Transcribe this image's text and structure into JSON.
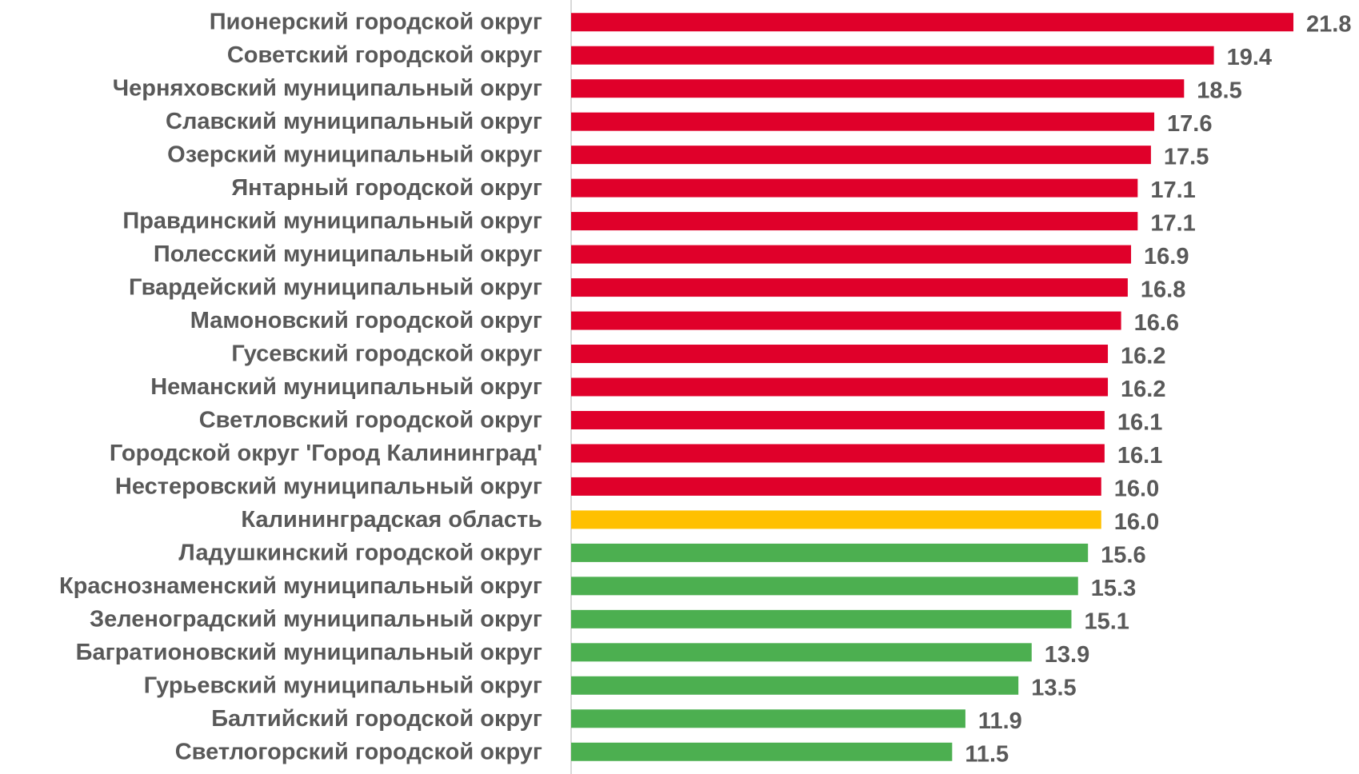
{
  "chart_data": {
    "type": "bar",
    "orientation": "horizontal",
    "title": "",
    "xlabel": "",
    "ylabel": "",
    "grid": false,
    "legend": "none",
    "xlim": [
      0,
      21.8
    ],
    "categories": [
      "Пионерский городской округ",
      "Советский городской округ",
      "Черняховский муниципальный округ",
      "Славский муниципальный округ",
      "Озерский муниципальный округ",
      "Янтарный городской округ",
      "Правдинский муниципальный округ",
      "Полесский муниципальный округ",
      "Гвардейский муниципальный округ",
      "Мамоновский городской округ",
      "Гусевский городской округ",
      "Неманский муниципальный округ",
      "Светловский городской округ",
      "Городской округ 'Город Калининград'",
      "Нестеровский муниципальный округ",
      "Калининградская область",
      "Ладушкинский городской округ",
      "Краснознаменский муниципальный округ",
      "Зеленоградский муниципальный округ",
      "Багратионовский муниципальный округ",
      "Гурьевский муниципальный округ",
      "Балтийский городской округ",
      "Светлогорский городской округ"
    ],
    "values": [
      21.8,
      19.4,
      18.5,
      17.6,
      17.5,
      17.1,
      17.1,
      16.9,
      16.8,
      16.6,
      16.2,
      16.2,
      16.1,
      16.1,
      16.0,
      16.0,
      15.6,
      15.3,
      15.1,
      13.9,
      13.5,
      11.9,
      11.5
    ],
    "value_labels": [
      "21.8",
      "19.4",
      "18.5",
      "17.6",
      "17.5",
      "17.1",
      "17.1",
      "16.9",
      "16.8",
      "16.6",
      "16.2",
      "16.2",
      "16.1",
      "16.1",
      "16.0",
      "16.0",
      "15.6",
      "15.3",
      "15.1",
      "13.9",
      "13.5",
      "11.9",
      "11.5"
    ],
    "bar_status": [
      "above",
      "above",
      "above",
      "above",
      "above",
      "above",
      "above",
      "above",
      "above",
      "above",
      "above",
      "above",
      "above",
      "above",
      "above",
      "region",
      "below",
      "below",
      "below",
      "below",
      "below",
      "below",
      "below"
    ],
    "colors": {
      "above": "#E0002A",
      "region": "#FFC000",
      "below": "#4CAF50",
      "axis": "#D9D9D9",
      "text": "#595959"
    }
  }
}
